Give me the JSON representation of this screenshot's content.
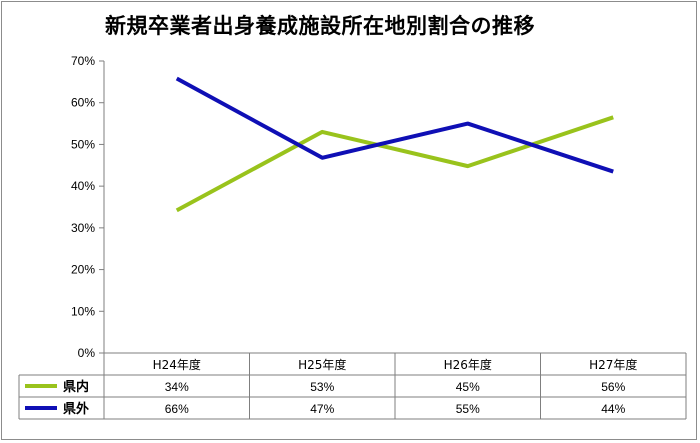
{
  "chart_data": {
    "type": "line",
    "title": "新規卒業者出身養成施設所在地別割合の推移",
    "categories": [
      "H24年度",
      "H25年度",
      "H26年度",
      "H27年度"
    ],
    "ylim": [
      0,
      70
    ],
    "y_ticks": [
      0,
      10,
      20,
      30,
      40,
      50,
      60,
      70
    ],
    "y_tick_labels": [
      "0%",
      "10%",
      "20%",
      "30%",
      "40%",
      "50%",
      "60%",
      "70%"
    ],
    "grid": false,
    "legend": "data-table",
    "series": [
      {
        "name": "県内",
        "color": "#99c31c",
        "values": [
          34.2,
          53.0,
          44.8,
          56.5
        ],
        "labels": [
          "34%",
          "53%",
          "45%",
          "56%"
        ]
      },
      {
        "name": "県外",
        "color": "#0f0fb5",
        "values": [
          65.8,
          46.8,
          55.0,
          43.5
        ],
        "labels": [
          "66%",
          "47%",
          "55%",
          "44%"
        ]
      }
    ]
  }
}
